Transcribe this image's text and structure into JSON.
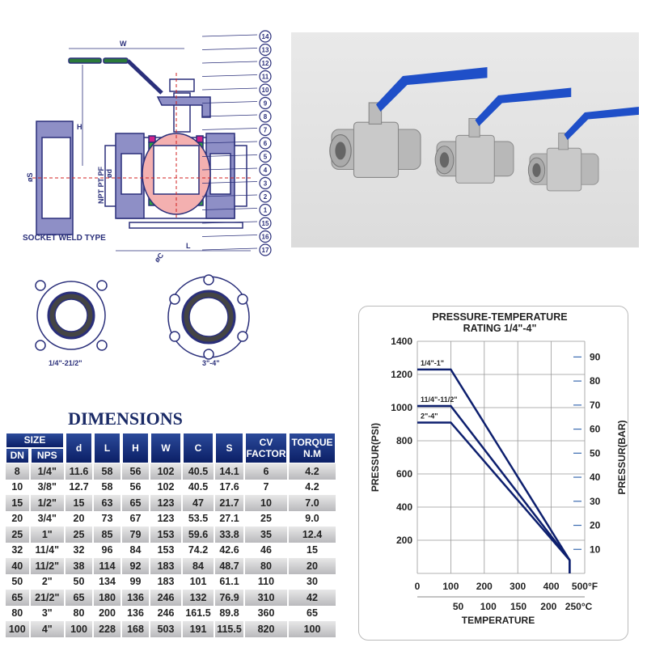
{
  "drawing": {
    "dimension_labels": {
      "w": "W",
      "h": "H",
      "l": "L",
      "npt": "NPT PT PF",
      "d": "ød",
      "s": "øS",
      "c": "øC"
    },
    "part_callouts": [
      "14",
      "13",
      "12",
      "11",
      "10",
      "9",
      "8",
      "7",
      "6",
      "5",
      "4",
      "3",
      "2",
      "1",
      "15",
      "16",
      "17"
    ],
    "socket_weld_label": "SOCKET WELD TYPE",
    "flange_small_label": "1/4\"-21/2\"",
    "flange_large_label": "3\"-4\""
  },
  "photo": {
    "handle_color": "#1f4fc8",
    "body_color": "#b8b8b8"
  },
  "dimensions": {
    "title": "DIMENSIONS",
    "header": {
      "size": "SIZE",
      "dn": "DN",
      "nps": "NPS",
      "cols": [
        "d",
        "L",
        "H",
        "W",
        "C",
        "S"
      ],
      "cv": "CV FACTOR",
      "torque": "TORQUE N.M"
    },
    "rows": [
      [
        "8",
        "1/4\"",
        "11.6",
        "58",
        "56",
        "102",
        "40.5",
        "14.1",
        "6",
        "4.2"
      ],
      [
        "10",
        "3/8\"",
        "12.7",
        "58",
        "56",
        "102",
        "40.5",
        "17.6",
        "7",
        "4.2"
      ],
      [
        "15",
        "1/2\"",
        "15",
        "63",
        "65",
        "123",
        "47",
        "21.7",
        "10",
        "7.0"
      ],
      [
        "20",
        "3/4\"",
        "20",
        "73",
        "67",
        "123",
        "53.5",
        "27.1",
        "25",
        "9.0"
      ],
      [
        "25",
        "1\"",
        "25",
        "85",
        "79",
        "153",
        "59.6",
        "33.8",
        "35",
        "12.4"
      ],
      [
        "32",
        "11/4\"",
        "32",
        "96",
        "84",
        "153",
        "74.2",
        "42.6",
        "46",
        "15"
      ],
      [
        "40",
        "11/2\"",
        "38",
        "114",
        "92",
        "183",
        "84",
        "48.7",
        "80",
        "20"
      ],
      [
        "50",
        "2\"",
        "50",
        "134",
        "99",
        "183",
        "101",
        "61.1",
        "110",
        "30"
      ],
      [
        "65",
        "21/2\"",
        "65",
        "180",
        "136",
        "246",
        "132",
        "76.9",
        "310",
        "42"
      ],
      [
        "80",
        "3\"",
        "80",
        "200",
        "136",
        "246",
        "161.5",
        "89.8",
        "360",
        "65"
      ],
      [
        "100",
        "4\"",
        "100",
        "228",
        "168",
        "503",
        "191",
        "115.5",
        "820",
        "100"
      ]
    ]
  },
  "chart_data": {
    "type": "line",
    "title": "PRESSURE-TEMPERATURE RATING 1/4\"-4\"",
    "xlabel": "TEMPERATURE",
    "ylabel": "PRESSUR(PSI)",
    "y2label": "PRESSUR(BAR)",
    "xlim": [
      0,
      500
    ],
    "ylim": [
      0,
      1400
    ],
    "y2ticks": [
      10,
      20,
      30,
      40,
      50,
      60,
      70,
      80,
      90
    ],
    "xticks_f": [
      "0",
      "100",
      "200",
      "300",
      "400",
      "500°F"
    ],
    "xticks_c": [
      "50",
      "100",
      "150",
      "200",
      "250°C"
    ],
    "yticks": [
      200,
      400,
      600,
      800,
      1000,
      1200,
      1400
    ],
    "grid": true,
    "line_color": "#0d1f6e",
    "series": [
      {
        "name": "1/4\"-1\"",
        "x": [
          0,
          100,
          455,
          455
        ],
        "y": [
          1230,
          1230,
          80,
          0
        ]
      },
      {
        "name": "11/4\"-11/2\"",
        "x": [
          0,
          100,
          455,
          455
        ],
        "y": [
          1010,
          1010,
          80,
          0
        ]
      },
      {
        "name": "2\"-4\"",
        "x": [
          0,
          100,
          455
        ],
        "y": [
          910,
          910,
          80
        ]
      }
    ]
  }
}
